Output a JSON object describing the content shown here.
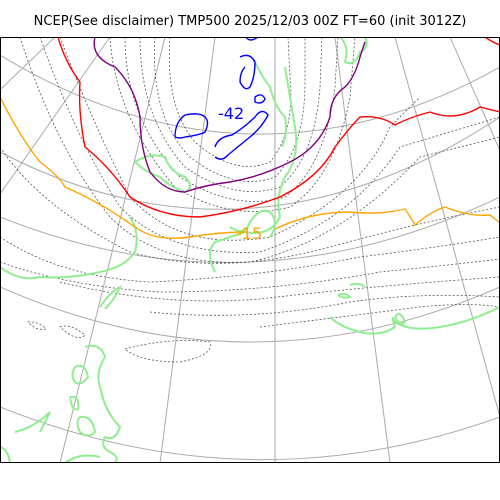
{
  "title": "NCEP(See disclaimer) TMP500 2025/12/03 00Z FT=60 (init 3012Z)",
  "map": {
    "variable": "TMP500",
    "contour_labels": [
      {
        "text": "-42",
        "color": "#0000ff"
      },
      {
        "text": "-15",
        "color": "#ffa500"
      }
    ],
    "colors": {
      "grid": "#aaaaaa",
      "coast": "#90ee90",
      "contour_minor": "#555555",
      "contour_blue": "#0000ff",
      "contour_purple": "#800080",
      "contour_red": "#ff0000",
      "contour_orange": "#ffa500",
      "frame": "#000000"
    }
  }
}
